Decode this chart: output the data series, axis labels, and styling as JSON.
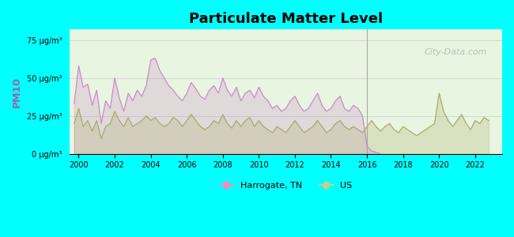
{
  "title": "Particulate Matter Level",
  "ylabel": "PM10",
  "background_outer": "#00FFFF",
  "background_inner": "#e8f5e0",
  "ytick_labels": [
    "0 μg/m³",
    "25 μg/m³",
    "50 μg/m³",
    "75 μg/m³"
  ],
  "ytick_values": [
    0,
    25,
    50,
    75
  ],
  "xlim": [
    1999.5,
    2023.5
  ],
  "ylim": [
    0,
    82
  ],
  "xticks": [
    2000,
    2002,
    2004,
    2006,
    2008,
    2010,
    2012,
    2014,
    2016,
    2018,
    2020,
    2022
  ],
  "harrogate_color": "#cc88cc",
  "us_color": "#aaaa66",
  "legend_harrogate_color": "#ff88bb",
  "legend_us_color": "#cccc88",
  "watermark": "City-Data.com",
  "harrogate_data": [
    [
      1999.75,
      33
    ],
    [
      2000.0,
      58
    ],
    [
      2000.25,
      44
    ],
    [
      2000.5,
      46
    ],
    [
      2000.75,
      32
    ],
    [
      2001.0,
      42
    ],
    [
      2001.25,
      20
    ],
    [
      2001.5,
      35
    ],
    [
      2001.75,
      30
    ],
    [
      2002.0,
      50
    ],
    [
      2002.25,
      37
    ],
    [
      2002.5,
      28
    ],
    [
      2002.75,
      40
    ],
    [
      2003.0,
      35
    ],
    [
      2003.25,
      42
    ],
    [
      2003.5,
      38
    ],
    [
      2003.75,
      45
    ],
    [
      2004.0,
      62
    ],
    [
      2004.25,
      63
    ],
    [
      2004.5,
      55
    ],
    [
      2004.75,
      50
    ],
    [
      2005.0,
      45
    ],
    [
      2005.25,
      42
    ],
    [
      2005.5,
      38
    ],
    [
      2005.75,
      35
    ],
    [
      2006.0,
      40
    ],
    [
      2006.25,
      47
    ],
    [
      2006.5,
      43
    ],
    [
      2006.75,
      38
    ],
    [
      2007.0,
      36
    ],
    [
      2007.25,
      42
    ],
    [
      2007.5,
      45
    ],
    [
      2007.75,
      40
    ],
    [
      2008.0,
      50
    ],
    [
      2008.25,
      42
    ],
    [
      2008.5,
      38
    ],
    [
      2008.75,
      44
    ],
    [
      2009.0,
      35
    ],
    [
      2009.25,
      40
    ],
    [
      2009.5,
      42
    ],
    [
      2009.75,
      37
    ],
    [
      2010.0,
      44
    ],
    [
      2010.25,
      38
    ],
    [
      2010.5,
      35
    ],
    [
      2010.75,
      30
    ],
    [
      2011.0,
      32
    ],
    [
      2011.25,
      28
    ],
    [
      2011.5,
      30
    ],
    [
      2011.75,
      35
    ],
    [
      2012.0,
      38
    ],
    [
      2012.25,
      32
    ],
    [
      2012.5,
      28
    ],
    [
      2012.75,
      30
    ],
    [
      2013.0,
      35
    ],
    [
      2013.25,
      40
    ],
    [
      2013.5,
      32
    ],
    [
      2013.75,
      28
    ],
    [
      2014.0,
      30
    ],
    [
      2014.25,
      35
    ],
    [
      2014.5,
      38
    ],
    [
      2014.75,
      30
    ],
    [
      2015.0,
      28
    ],
    [
      2015.25,
      32
    ],
    [
      2015.5,
      30
    ],
    [
      2015.75,
      25
    ],
    [
      2016.0,
      5
    ],
    [
      2016.25,
      2
    ],
    [
      2016.5,
      1
    ],
    [
      2016.75,
      0
    ]
  ],
  "us_data": [
    [
      1999.75,
      20
    ],
    [
      2000.0,
      30
    ],
    [
      2000.25,
      18
    ],
    [
      2000.5,
      22
    ],
    [
      2000.75,
      15
    ],
    [
      2001.0,
      22
    ],
    [
      2001.25,
      10
    ],
    [
      2001.5,
      18
    ],
    [
      2001.75,
      20
    ],
    [
      2002.0,
      28
    ],
    [
      2002.25,
      22
    ],
    [
      2002.5,
      18
    ],
    [
      2002.75,
      24
    ],
    [
      2003.0,
      18
    ],
    [
      2003.25,
      20
    ],
    [
      2003.5,
      22
    ],
    [
      2003.75,
      25
    ],
    [
      2004.0,
      22
    ],
    [
      2004.25,
      24
    ],
    [
      2004.5,
      20
    ],
    [
      2004.75,
      18
    ],
    [
      2005.0,
      20
    ],
    [
      2005.25,
      24
    ],
    [
      2005.5,
      22
    ],
    [
      2005.75,
      18
    ],
    [
      2006.0,
      22
    ],
    [
      2006.25,
      26
    ],
    [
      2006.5,
      22
    ],
    [
      2006.75,
      18
    ],
    [
      2007.0,
      16
    ],
    [
      2007.25,
      18
    ],
    [
      2007.5,
      22
    ],
    [
      2007.75,
      20
    ],
    [
      2008.0,
      26
    ],
    [
      2008.25,
      20
    ],
    [
      2008.5,
      17
    ],
    [
      2008.75,
      22
    ],
    [
      2009.0,
      18
    ],
    [
      2009.25,
      22
    ],
    [
      2009.5,
      24
    ],
    [
      2009.75,
      18
    ],
    [
      2010.0,
      22
    ],
    [
      2010.25,
      18
    ],
    [
      2010.5,
      16
    ],
    [
      2010.75,
      14
    ],
    [
      2011.0,
      18
    ],
    [
      2011.25,
      16
    ],
    [
      2011.5,
      14
    ],
    [
      2011.75,
      18
    ],
    [
      2012.0,
      22
    ],
    [
      2012.25,
      18
    ],
    [
      2012.5,
      14
    ],
    [
      2012.75,
      16
    ],
    [
      2013.0,
      18
    ],
    [
      2013.25,
      22
    ],
    [
      2013.5,
      18
    ],
    [
      2013.75,
      14
    ],
    [
      2014.0,
      16
    ],
    [
      2014.25,
      20
    ],
    [
      2014.5,
      22
    ],
    [
      2014.75,
      18
    ],
    [
      2015.0,
      16
    ],
    [
      2015.25,
      18
    ],
    [
      2015.5,
      16
    ],
    [
      2015.75,
      14
    ],
    [
      2016.0,
      18
    ],
    [
      2016.25,
      22
    ],
    [
      2016.5,
      18
    ],
    [
      2016.75,
      15
    ],
    [
      2017.0,
      18
    ],
    [
      2017.25,
      20
    ],
    [
      2017.5,
      16
    ],
    [
      2017.75,
      14
    ],
    [
      2018.0,
      18
    ],
    [
      2018.25,
      16
    ],
    [
      2018.5,
      14
    ],
    [
      2018.75,
      12
    ],
    [
      2019.0,
      14
    ],
    [
      2019.25,
      16
    ],
    [
      2019.5,
      18
    ],
    [
      2019.75,
      20
    ],
    [
      2020.0,
      40
    ],
    [
      2020.25,
      28
    ],
    [
      2020.5,
      22
    ],
    [
      2020.75,
      18
    ],
    [
      2021.0,
      22
    ],
    [
      2021.25,
      26
    ],
    [
      2021.5,
      20
    ],
    [
      2021.75,
      16
    ],
    [
      2022.0,
      22
    ],
    [
      2022.25,
      20
    ],
    [
      2022.5,
      24
    ],
    [
      2022.75,
      22
    ]
  ]
}
